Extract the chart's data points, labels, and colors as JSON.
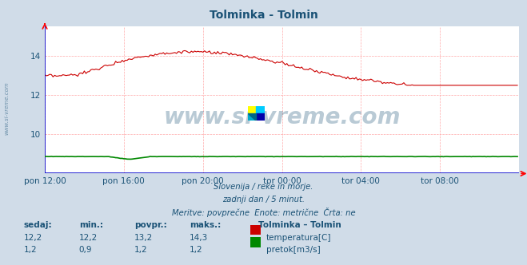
{
  "title": "Tolminka - Tolmin",
  "title_color": "#1a5276",
  "bg_color": "#d0dce8",
  "plot_bg_color": "#ffffff",
  "grid_color": "#ffaaaa",
  "xticklabels": [
    "pon 12:00",
    "pon 16:00",
    "pon 20:00",
    "tor 00:00",
    "tor 04:00",
    "tor 08:00"
  ],
  "xtick_positions": [
    0,
    48,
    96,
    144,
    192,
    240
  ],
  "xlim": [
    0,
    288
  ],
  "ylim_temp": [
    8.0,
    15.5
  ],
  "yticks_temp": [
    10,
    12,
    14
  ],
  "watermark": "www.si-vreme.com",
  "watermark_color": "#1a5276",
  "sub1": "Slovenija / reke in morje.",
  "sub2": "zadnji dan / 5 minut.",
  "sub3": "Meritve: povprečne  Enote: metrične  Črta: ne",
  "sub_color": "#1a5276",
  "legend_title": "Tolminka – Tolmin",
  "legend_color": "#1a5276",
  "stat_headers": [
    "sedaj:",
    "min.:",
    "povpr.:",
    "maks.:"
  ],
  "stat_temp": [
    "12,2",
    "12,2",
    "13,2",
    "14,3"
  ],
  "stat_flow": [
    "1,2",
    "0,9",
    "1,2",
    "1,2"
  ],
  "temp_color": "#cc0000",
  "flow_color": "#008800",
  "axis_color": "#0000cc",
  "axis_label_color": "#1a5276",
  "sidewatermark": "www.si-vreme.com",
  "sidewatermark_color": "#1a5276"
}
